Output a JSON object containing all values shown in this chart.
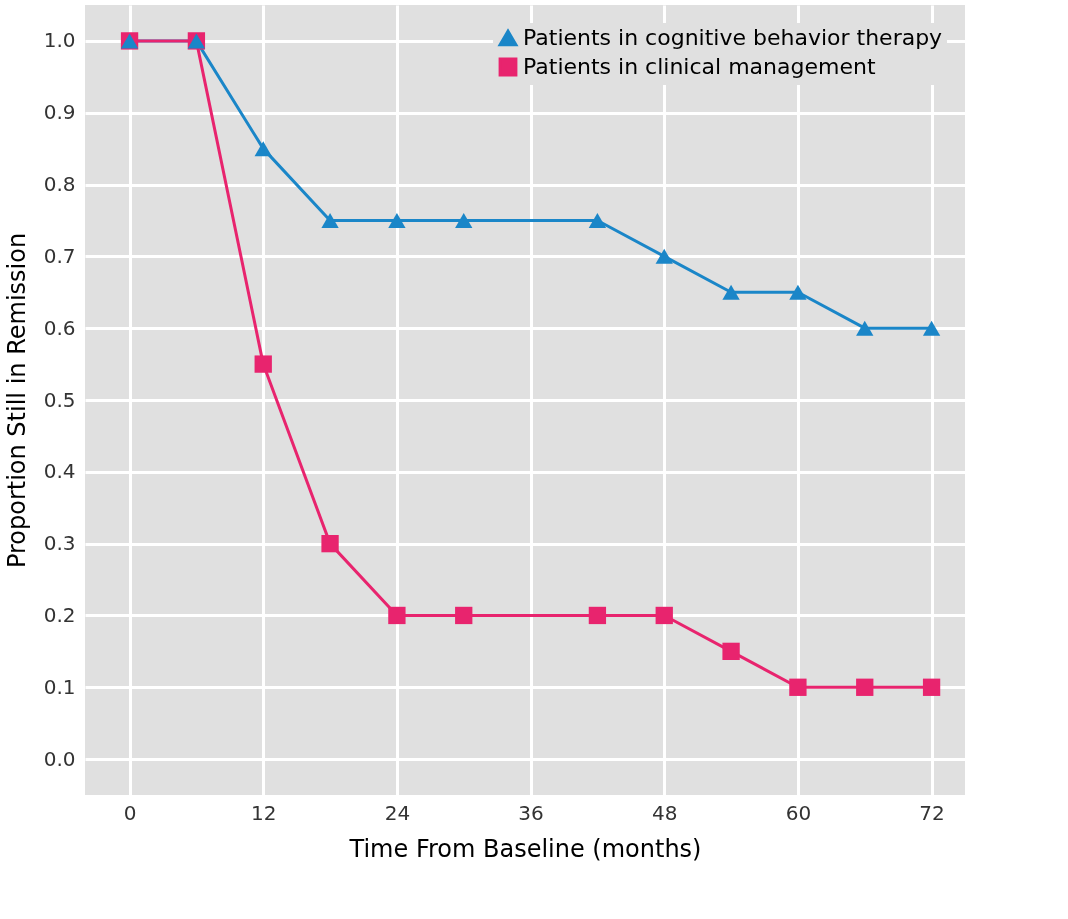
{
  "chart_data": {
    "type": "line",
    "xlabel": "Time From Baseline (months)",
    "ylabel": "Proportion Still in Remission",
    "x": [
      0,
      6,
      12,
      18,
      24,
      30,
      42,
      48,
      54,
      60,
      66,
      72
    ],
    "series": [
      {
        "name": "Patients in cognitive behavior therapy",
        "color": "#1a86c8",
        "marker": "triangle",
        "values": [
          1.0,
          1.0,
          0.85,
          0.75,
          0.75,
          0.75,
          0.75,
          0.7,
          0.65,
          0.65,
          0.6,
          0.6
        ]
      },
      {
        "name": "Patients in clinical management",
        "color": "#e8246e",
        "marker": "square",
        "values": [
          1.0,
          1.0,
          0.55,
          0.3,
          0.2,
          0.2,
          0.2,
          0.2,
          0.15,
          0.1,
          0.1,
          0.1
        ]
      }
    ],
    "xlim": [
      -4,
      75
    ],
    "xticks": [
      0,
      12,
      24,
      36,
      48,
      60,
      72
    ],
    "ylim": [
      -0.05,
      1.05
    ],
    "yticks": [
      {
        "value": 0,
        "label": "0.0"
      },
      {
        "value": 0.1,
        "label": "0.1"
      },
      {
        "value": 0.2,
        "label": "0.2"
      },
      {
        "value": 0.3,
        "label": "0.3"
      },
      {
        "value": 0.4,
        "label": "0.4"
      },
      {
        "value": 0.5,
        "label": "0.5"
      },
      {
        "value": 0.6,
        "label": "0.6"
      },
      {
        "value": 0.7,
        "label": "0.7"
      },
      {
        "value": 0.8,
        "label": "0.8"
      },
      {
        "value": 0.9,
        "label": "0.9"
      },
      {
        "value": 1.0,
        "label": "1.0"
      }
    ],
    "grid": true,
    "legend": "top right",
    "line_style": "solid"
  }
}
